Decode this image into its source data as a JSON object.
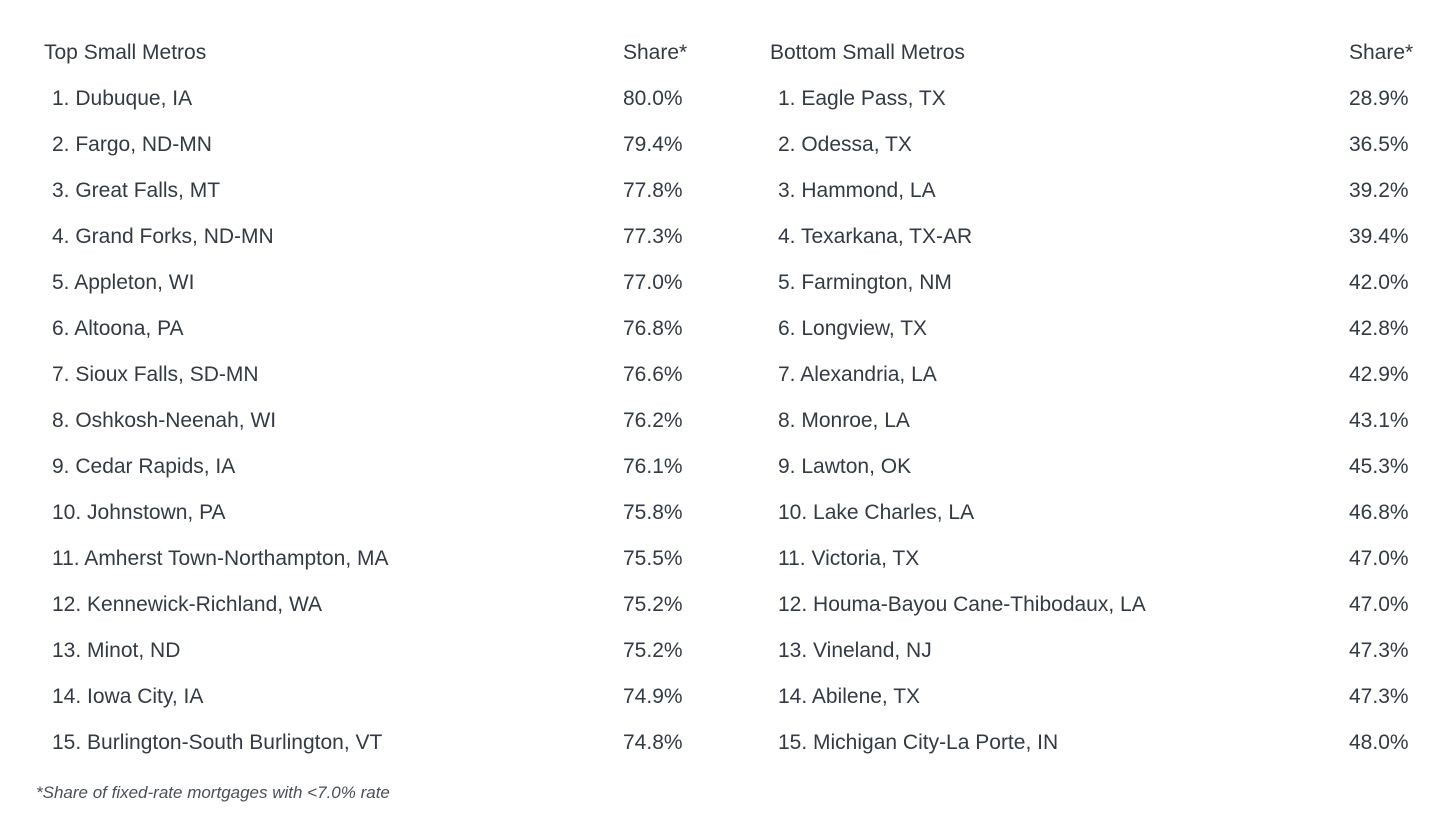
{
  "top_table": {
    "header_name": "Top Small Metros",
    "header_share": "Share*",
    "rows": [
      {
        "name": "1. Dubuque, IA",
        "share": "80.0%"
      },
      {
        "name": "2. Fargo, ND-MN",
        "share": "79.4%"
      },
      {
        "name": "3. Great Falls, MT",
        "share": "77.8%"
      },
      {
        "name": "4. Grand Forks, ND-MN",
        "share": "77.3%"
      },
      {
        "name": "5. Appleton, WI",
        "share": "77.0%"
      },
      {
        "name": "6. Altoona, PA",
        "share": "76.8%"
      },
      {
        "name": "7. Sioux Falls, SD-MN",
        "share": "76.6%"
      },
      {
        "name": "8. Oshkosh-Neenah, WI",
        "share": "76.2%"
      },
      {
        "name": "9. Cedar Rapids, IA",
        "share": "76.1%"
      },
      {
        "name": "10. Johnstown, PA",
        "share": "75.8%"
      },
      {
        "name": "11. Amherst Town-Northampton, MA",
        "share": "75.5%"
      },
      {
        "name": "12. Kennewick-Richland, WA",
        "share": "75.2%"
      },
      {
        "name": "13. Minot, ND",
        "share": "75.2%"
      },
      {
        "name": "14. Iowa City, IA",
        "share": "74.9%"
      },
      {
        "name": "15. Burlington-South Burlington, VT",
        "share": "74.8%"
      }
    ]
  },
  "bottom_table": {
    "header_name": "Bottom Small Metros",
    "header_share": "Share*",
    "rows": [
      {
        "name": "1. Eagle Pass, TX",
        "share": "28.9%"
      },
      {
        "name": "2. Odessa, TX",
        "share": "36.5%"
      },
      {
        "name": "3. Hammond, LA",
        "share": "39.2%"
      },
      {
        "name": "4. Texarkana, TX-AR",
        "share": "39.4%"
      },
      {
        "name": "5. Farmington, NM",
        "share": "42.0%"
      },
      {
        "name": "6. Longview, TX",
        "share": "42.8%"
      },
      {
        "name": "7. Alexandria, LA",
        "share": "42.9%"
      },
      {
        "name": "8. Monroe, LA",
        "share": "43.1%"
      },
      {
        "name": "9. Lawton, OK",
        "share": "45.3%"
      },
      {
        "name": "10. Lake Charles, LA",
        "share": "46.8%"
      },
      {
        "name": "11. Victoria, TX",
        "share": "47.0%"
      },
      {
        "name": "12. Houma-Bayou Cane-Thibodaux, LA",
        "share": "47.0%"
      },
      {
        "name": "13. Vineland, NJ",
        "share": "47.3%"
      },
      {
        "name": "14. Abilene, TX",
        "share": "47.3%"
      },
      {
        "name": "15. Michigan City-La Porte, IN",
        "share": "48.0%"
      }
    ]
  },
  "footnote": "*Share of fixed-rate mortgages with <7.0% rate"
}
